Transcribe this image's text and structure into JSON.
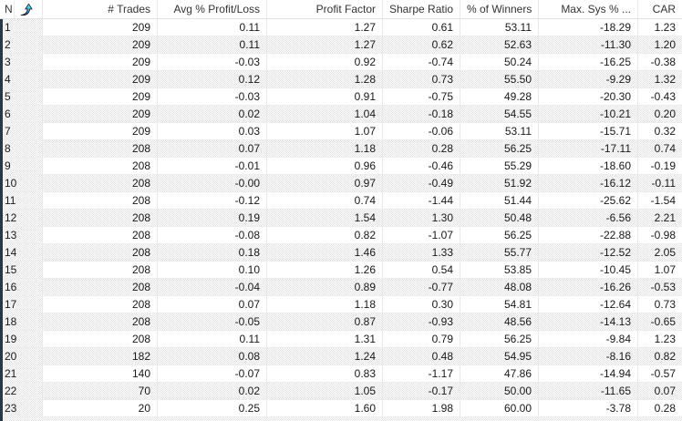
{
  "window": {
    "title": "Optimization results list"
  },
  "colors": {
    "row_alt_dither": "#e4e4e4",
    "grid_line_vertical": "#e9e9e9",
    "grid_line_horizontal": "#ededed",
    "header_text": "#333333",
    "cell_text": "#181818",
    "pane_edge": "#2b3742",
    "sort_icon_blue": "#1f2fd4",
    "sort_icon_cyan": "#59f2f7"
  },
  "icons": {
    "sort_ascending": "sort-ascending-icon"
  },
  "table": {
    "columns": [
      {
        "key": "no",
        "label": "N",
        "align": "left"
      },
      {
        "key": "trades",
        "label": "# Trades",
        "align": "right"
      },
      {
        "key": "avg_pl",
        "label": "Avg % Profit/Loss",
        "align": "right"
      },
      {
        "key": "profit_factor",
        "label": "Profit Factor",
        "align": "right"
      },
      {
        "key": "sharpe",
        "label": "Sharpe Ratio",
        "align": "right"
      },
      {
        "key": "winners",
        "label": "% of Winners",
        "align": "right"
      },
      {
        "key": "max_sys",
        "label": "Max. Sys % ...",
        "align": "right"
      },
      {
        "key": "car",
        "label": "CAR",
        "align": "right"
      }
    ],
    "rows": [
      [
        "1",
        "209",
        "0.11",
        "1.27",
        "0.61",
        "53.11",
        "-18.29",
        "1.23"
      ],
      [
        "2",
        "209",
        "0.11",
        "1.27",
        "0.62",
        "52.63",
        "-11.30",
        "1.20"
      ],
      [
        "3",
        "209",
        "-0.03",
        "0.92",
        "-0.74",
        "50.24",
        "-16.25",
        "-0.38"
      ],
      [
        "4",
        "209",
        "0.12",
        "1.28",
        "0.73",
        "55.50",
        "-9.29",
        "1.32"
      ],
      [
        "5",
        "209",
        "-0.03",
        "0.91",
        "-0.75",
        "49.28",
        "-20.30",
        "-0.43"
      ],
      [
        "6",
        "209",
        "0.02",
        "1.04",
        "-0.18",
        "54.55",
        "-10.21",
        "0.20"
      ],
      [
        "7",
        "209",
        "0.03",
        "1.07",
        "-0.06",
        "53.11",
        "-15.71",
        "0.32"
      ],
      [
        "8",
        "208",
        "0.07",
        "1.18",
        "0.28",
        "56.25",
        "-17.11",
        "0.74"
      ],
      [
        "9",
        "208",
        "-0.01",
        "0.96",
        "-0.46",
        "55.29",
        "-18.60",
        "-0.19"
      ],
      [
        "10",
        "208",
        "-0.00",
        "0.97",
        "-0.49",
        "51.92",
        "-16.12",
        "-0.11"
      ],
      [
        "11",
        "208",
        "-0.12",
        "0.74",
        "-1.44",
        "51.44",
        "-25.62",
        "-1.54"
      ],
      [
        "12",
        "208",
        "0.19",
        "1.54",
        "1.30",
        "50.48",
        "-6.56",
        "2.21"
      ],
      [
        "13",
        "208",
        "-0.08",
        "0.82",
        "-1.07",
        "56.25",
        "-22.88",
        "-0.98"
      ],
      [
        "14",
        "208",
        "0.18",
        "1.46",
        "1.33",
        "55.77",
        "-12.52",
        "2.05"
      ],
      [
        "15",
        "208",
        "0.10",
        "1.26",
        "0.54",
        "53.85",
        "-10.45",
        "1.07"
      ],
      [
        "16",
        "208",
        "-0.04",
        "0.89",
        "-0.77",
        "48.08",
        "-16.26",
        "-0.53"
      ],
      [
        "17",
        "208",
        "0.07",
        "1.18",
        "0.30",
        "54.81",
        "-12.64",
        "0.73"
      ],
      [
        "18",
        "208",
        "-0.05",
        "0.87",
        "-0.93",
        "48.56",
        "-14.13",
        "-0.65"
      ],
      [
        "19",
        "208",
        "0.11",
        "1.31",
        "0.79",
        "56.25",
        "-9.84",
        "1.23"
      ],
      [
        "20",
        "182",
        "0.08",
        "1.24",
        "0.48",
        "54.95",
        "-8.16",
        "0.82"
      ],
      [
        "21",
        "140",
        "-0.07",
        "0.83",
        "-1.17",
        "47.86",
        "-14.94",
        "-0.57"
      ],
      [
        "22",
        "70",
        "0.02",
        "1.05",
        "-0.17",
        "50.00",
        "-11.65",
        "0.07"
      ],
      [
        "23",
        "20",
        "0.25",
        "1.60",
        "1.98",
        "60.00",
        "-3.78",
        "0.28"
      ]
    ]
  }
}
